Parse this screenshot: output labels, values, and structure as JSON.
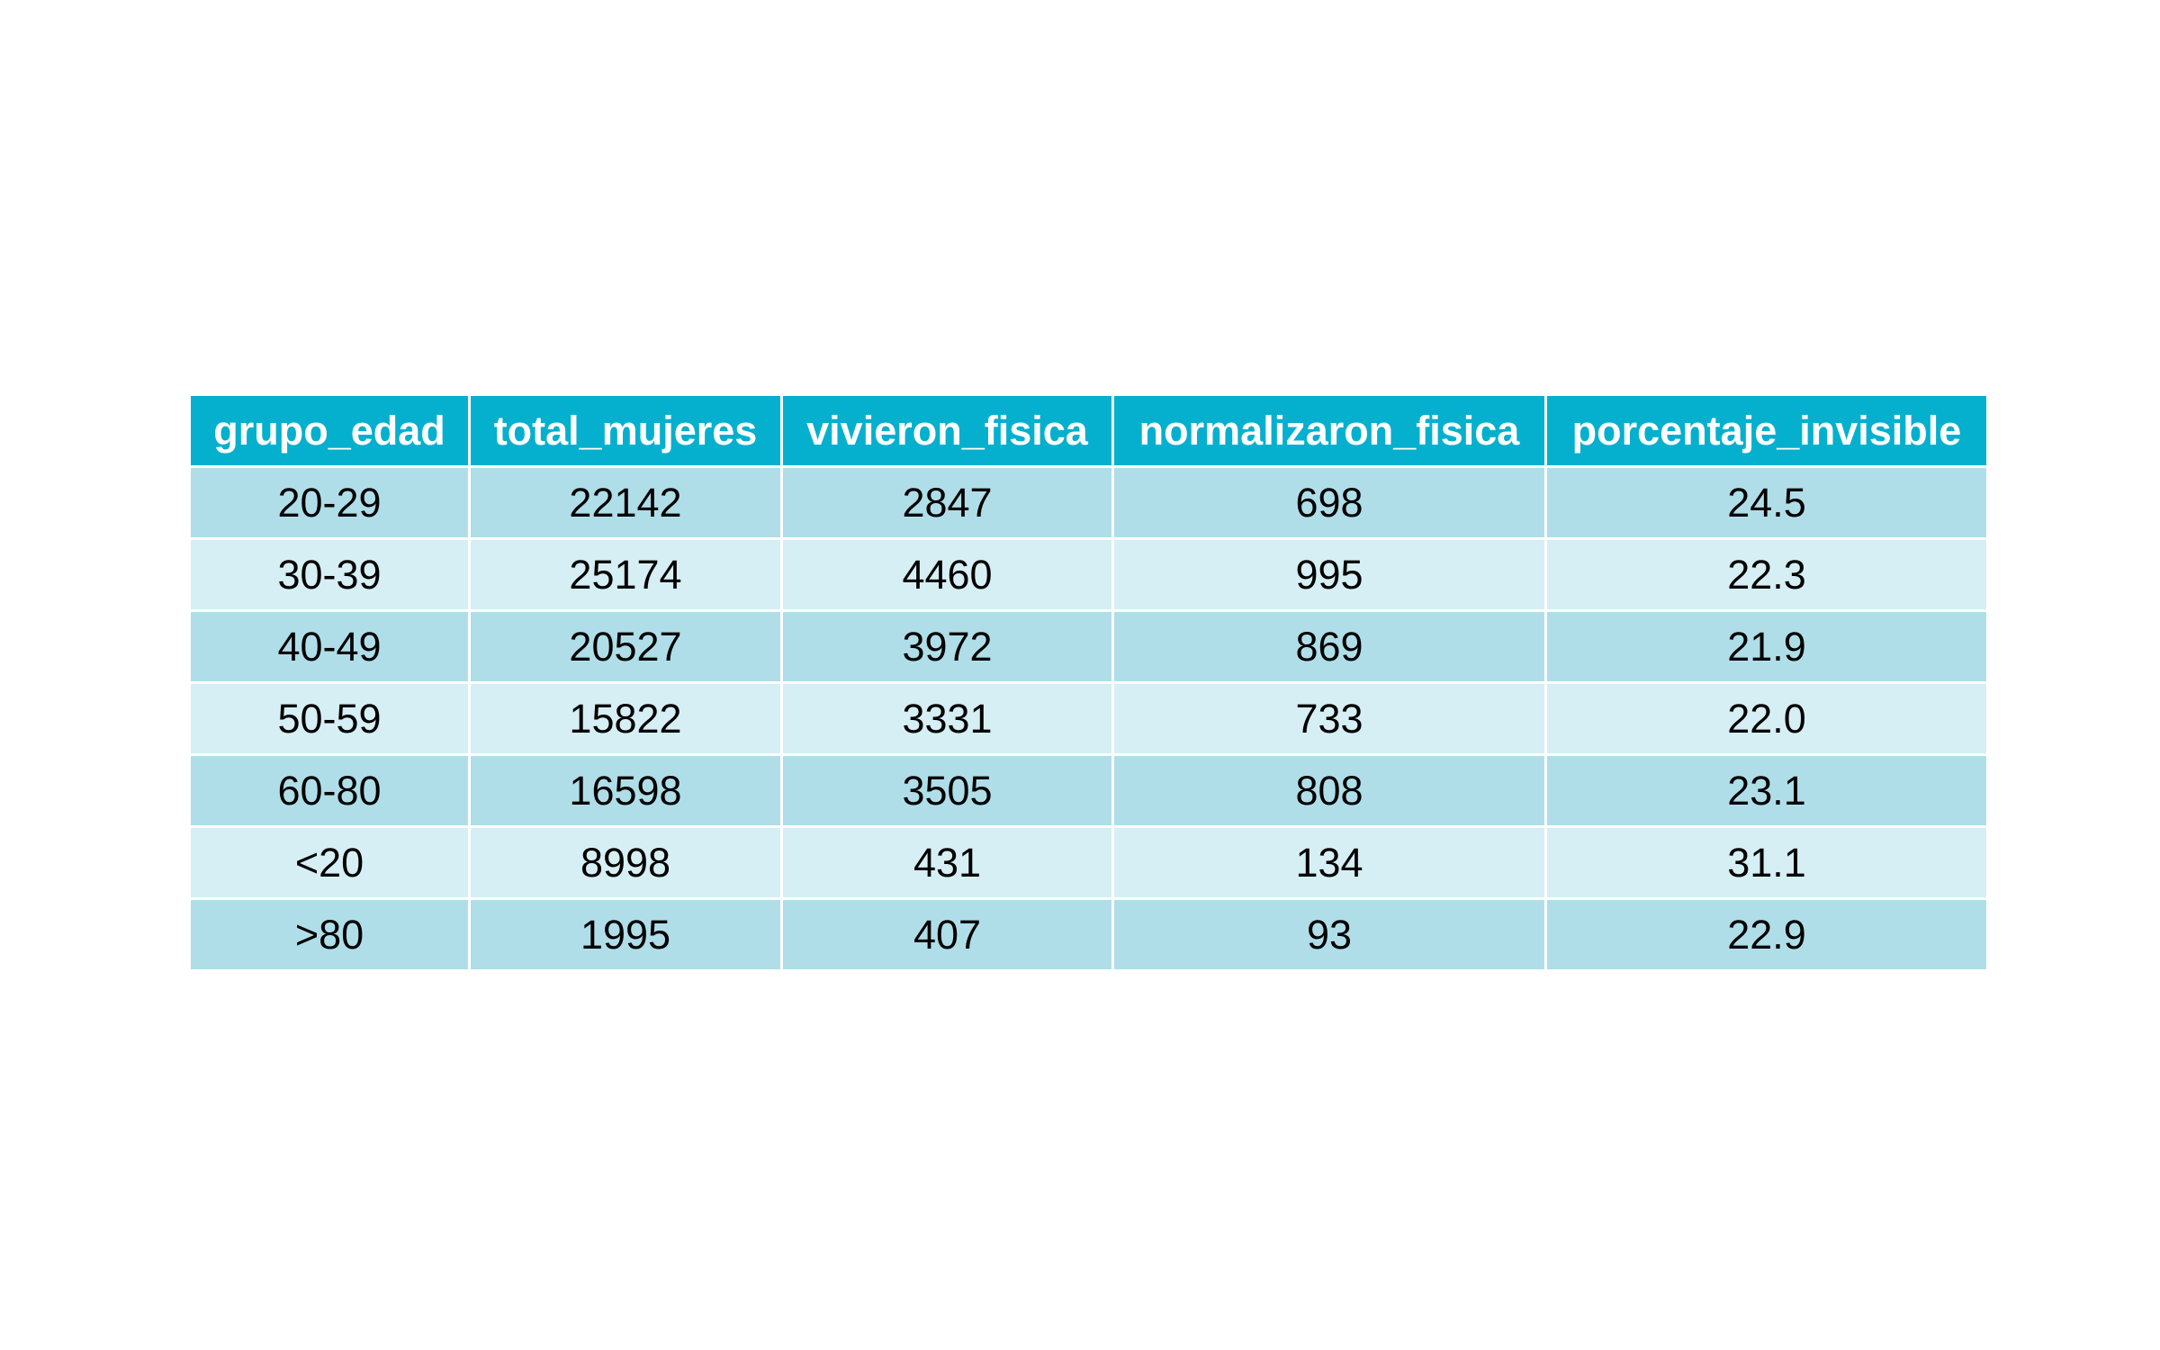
{
  "chart_data": {
    "type": "table",
    "title": "",
    "columns": [
      "grupo_edad",
      "total_mujeres",
      "vivieron_fisica",
      "normalizaron_fisica",
      "porcentaje_invisible"
    ],
    "rows": [
      [
        "20-29",
        "22142",
        "2847",
        "698",
        "24.5"
      ],
      [
        "30-39",
        "25174",
        "4460",
        "995",
        "22.3"
      ],
      [
        "40-49",
        "20527",
        "3972",
        "869",
        "21.9"
      ],
      [
        "50-59",
        "15822",
        "3331",
        "733",
        "22.0"
      ],
      [
        "60-80",
        "16598",
        "3505",
        "808",
        "23.1"
      ],
      [
        "<20",
        "8998",
        "431",
        "134",
        "31.1"
      ],
      [
        ">80",
        "1995",
        "407",
        "93",
        "22.9"
      ]
    ]
  },
  "colors": {
    "header_bg": "#05b0ce",
    "header_text": "#ffffff",
    "row_odd": "#afdee9",
    "row_even": "#d6eff4",
    "cell_text": "#000000"
  }
}
